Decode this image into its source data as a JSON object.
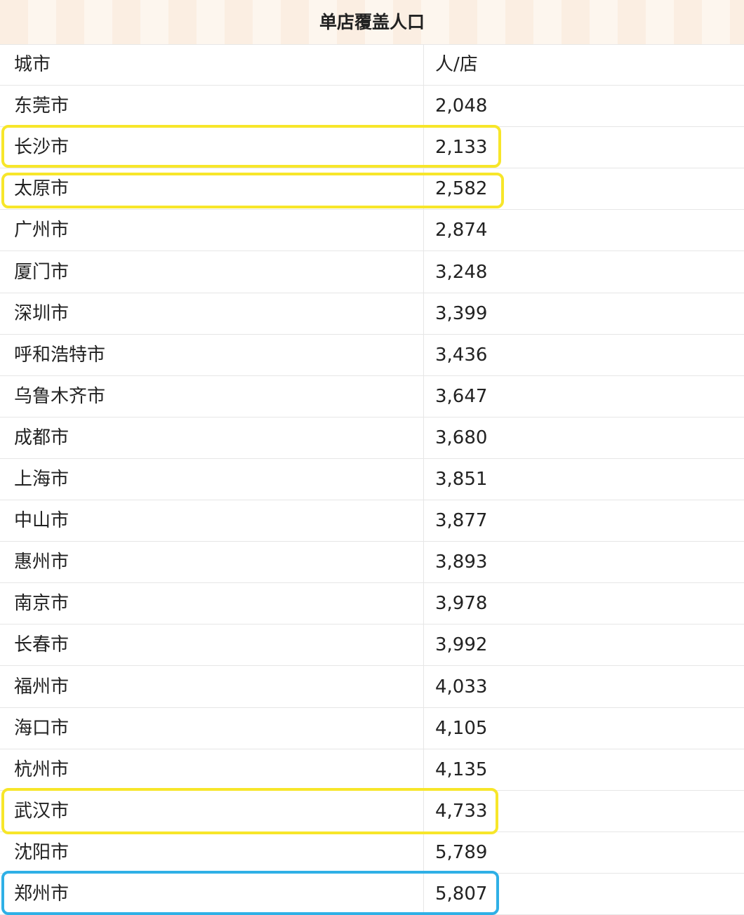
{
  "table": {
    "title": "单店覆盖人口",
    "header": [
      "城市",
      "人/店"
    ],
    "rows": [
      [
        "东莞市",
        "2,048"
      ],
      [
        "长沙市",
        "2,133"
      ],
      [
        "太原市",
        "2,582"
      ],
      [
        "广州市",
        "2,874"
      ],
      [
        "厦门市",
        "3,248"
      ],
      [
        "深圳市",
        "3,399"
      ],
      [
        "呼和浩特市",
        "3,436"
      ],
      [
        "乌鲁木齐市",
        "3,647"
      ],
      [
        "成都市",
        "3,680"
      ],
      [
        "上海市",
        "3,851"
      ],
      [
        "中山市",
        "3,877"
      ],
      [
        "惠州市",
        "3,893"
      ],
      [
        "南京市",
        "3,978"
      ],
      [
        "长春市",
        "3,992"
      ],
      [
        "福州市",
        "4,033"
      ],
      [
        "海口市",
        "4,105"
      ],
      [
        "杭州市",
        "4,135"
      ],
      [
        "武汉市",
        "4,733"
      ],
      [
        "沈阳市",
        "5,789"
      ],
      [
        "郑州市",
        "5,807"
      ]
    ]
  }
}
